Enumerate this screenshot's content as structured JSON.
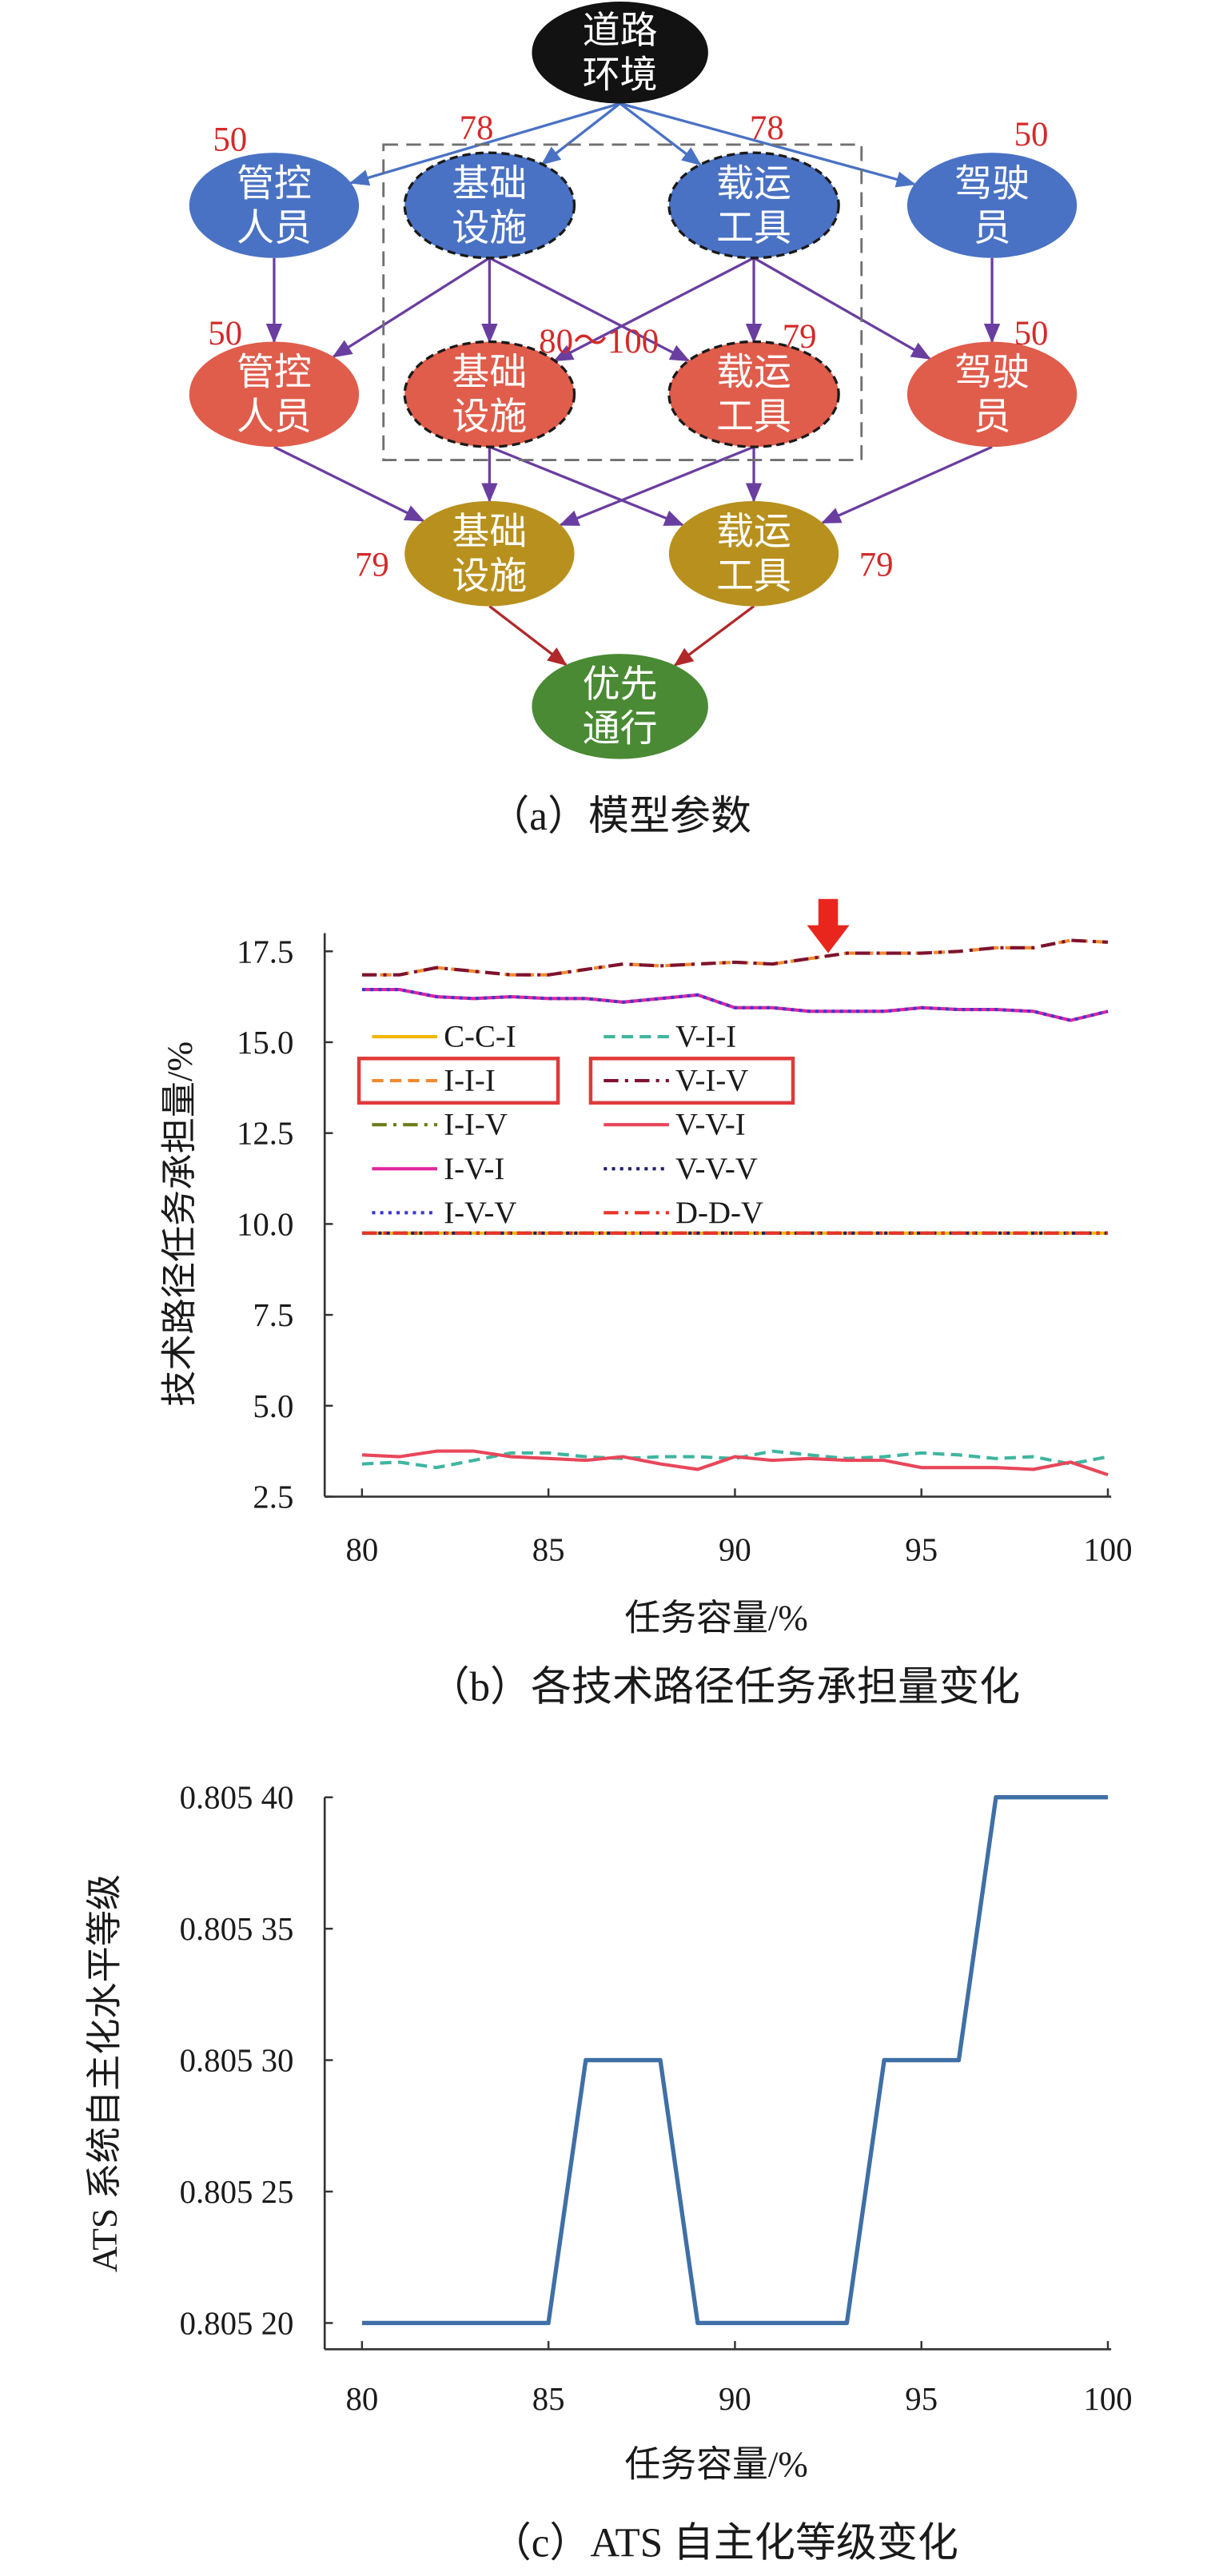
{
  "figure": {
    "panel_a": {
      "caption": "（a）模型参数",
      "nodes": [
        {
          "id": "env",
          "lines": [
            "道路",
            "环境"
          ],
          "fill": "#121212",
          "dashed": false
        },
        {
          "id": "r1_staff",
          "lines": [
            "管控",
            "人员"
          ],
          "fill": "#4a72c4",
          "dashed": false
        },
        {
          "id": "r1_infra",
          "lines": [
            "基础",
            "设施"
          ],
          "fill": "#4a72c4",
          "dashed": true
        },
        {
          "id": "r1_vehicle",
          "lines": [
            "载运",
            "工具"
          ],
          "fill": "#4a72c4",
          "dashed": true
        },
        {
          "id": "r1_driver",
          "lines": [
            "驾驶",
            "员"
          ],
          "fill": "#4a72c4",
          "dashed": false
        },
        {
          "id": "r2_staff",
          "lines": [
            "管控",
            "人员"
          ],
          "fill": "#e05c4b",
          "dashed": false
        },
        {
          "id": "r2_infra",
          "lines": [
            "基础",
            "设施"
          ],
          "fill": "#e05c4b",
          "dashed": true
        },
        {
          "id": "r2_vehicle",
          "lines": [
            "载运",
            "工具"
          ],
          "fill": "#e05c4b",
          "dashed": true
        },
        {
          "id": "r2_driver",
          "lines": [
            "驾驶",
            "员"
          ],
          "fill": "#e05c4b",
          "dashed": false
        },
        {
          "id": "r3_infra",
          "lines": [
            "基础",
            "设施"
          ],
          "fill": "#b8901e",
          "dashed": false
        },
        {
          "id": "r3_vehicle",
          "lines": [
            "载运",
            "工具"
          ],
          "fill": "#b8901e",
          "dashed": false
        },
        {
          "id": "priority",
          "lines": [
            "优先",
            "通行"
          ],
          "fill": "#4a8a34",
          "dashed": false
        }
      ],
      "edges": [
        {
          "from": "env",
          "to": "r1_staff",
          "color": "#4a72c4"
        },
        {
          "from": "env",
          "to": "r1_infra",
          "color": "#4a72c4"
        },
        {
          "from": "env",
          "to": "r1_vehicle",
          "color": "#4a72c4"
        },
        {
          "from": "env",
          "to": "r1_driver",
          "color": "#4a72c4"
        },
        {
          "from": "r1_staff",
          "to": "r2_staff",
          "color": "#6a3ea0"
        },
        {
          "from": "r1_infra",
          "to": "r2_staff",
          "color": "#6a3ea0"
        },
        {
          "from": "r1_infra",
          "to": "r2_infra",
          "color": "#6a3ea0"
        },
        {
          "from": "r1_infra",
          "to": "r2_vehicle",
          "color": "#6a3ea0"
        },
        {
          "from": "r1_vehicle",
          "to": "r2_infra",
          "color": "#6a3ea0"
        },
        {
          "from": "r1_vehicle",
          "to": "r2_vehicle",
          "color": "#6a3ea0"
        },
        {
          "from": "r1_vehicle",
          "to": "r2_driver",
          "color": "#6a3ea0"
        },
        {
          "from": "r1_driver",
          "to": "r2_driver",
          "color": "#6a3ea0"
        },
        {
          "from": "r2_staff",
          "to": "r3_infra",
          "color": "#6a3ea0"
        },
        {
          "from": "r2_infra",
          "to": "r3_infra",
          "color": "#6a3ea0"
        },
        {
          "from": "r2_infra",
          "to": "r3_vehicle",
          "color": "#6a3ea0"
        },
        {
          "from": "r2_vehicle",
          "to": "r3_infra",
          "color": "#6a3ea0"
        },
        {
          "from": "r2_vehicle",
          "to": "r3_vehicle",
          "color": "#6a3ea0"
        },
        {
          "from": "r2_driver",
          "to": "r3_vehicle",
          "color": "#6a3ea0"
        },
        {
          "from": "r3_infra",
          "to": "priority",
          "color": "#b0282a"
        },
        {
          "from": "r3_vehicle",
          "to": "priority",
          "color": "#b0282a"
        }
      ],
      "value_labels": [
        {
          "node": "r1_staff",
          "text": "50"
        },
        {
          "node": "r1_infra",
          "text": "78"
        },
        {
          "node": "r1_vehicle",
          "text": "78"
        },
        {
          "node": "r1_driver",
          "text": "50"
        },
        {
          "node": "r2_staff",
          "text": "50"
        },
        {
          "node": "r2_infra",
          "text": "80～100"
        },
        {
          "node": "r2_vehicle",
          "text": "79"
        },
        {
          "node": "r2_driver",
          "text": "50"
        },
        {
          "node": "r3_infra",
          "text": "79"
        },
        {
          "node": "r3_vehicle",
          "text": "79"
        }
      ],
      "value_color": "#d42a2a",
      "node_border_color": "#1a1a1a",
      "box": {
        "stroke": "#707070",
        "style": "dashed"
      }
    }
  },
  "chart_data": [
    {
      "type": "line",
      "caption": "（b）各技术路径任务承担量变化",
      "xlabel": "任务容量/%",
      "ylabel": "技术路径任务承担量/%",
      "xlim": [
        79,
        100
      ],
      "ylim": [
        2.5,
        18
      ],
      "xticks": [
        "80",
        "85",
        "90",
        "95",
        "100"
      ],
      "yticks": [
        "2.5",
        "5.0",
        "7.5",
        "10.0",
        "12.5",
        "15.0",
        "17.5"
      ],
      "grid": false,
      "x": [
        80,
        81,
        82,
        83,
        84,
        85,
        86,
        87,
        88,
        89,
        90,
        91,
        92,
        93,
        94,
        95,
        96,
        97,
        98,
        99,
        100
      ],
      "series": [
        {
          "name": "C-C-I",
          "color": "#f2b705",
          "style": "solid",
          "values": [
            9.75,
            9.75,
            9.75,
            9.75,
            9.75,
            9.75,
            9.75,
            9.75,
            9.75,
            9.75,
            9.75,
            9.75,
            9.75,
            9.75,
            9.75,
            9.75,
            9.75,
            9.75,
            9.75,
            9.75,
            9.75
          ]
        },
        {
          "name": "I-I-I",
          "color": "#f28a30",
          "style": "dashed",
          "values": [
            16.85,
            16.85,
            17.05,
            16.95,
            16.85,
            16.85,
            17.0,
            17.15,
            17.1,
            17.15,
            17.2,
            17.15,
            17.3,
            17.45,
            17.45,
            17.45,
            17.5,
            17.6,
            17.6,
            17.8,
            17.75
          ]
        },
        {
          "name": "I-I-V",
          "color": "#6b7d1a",
          "style": "dashdot",
          "values": [
            9.75,
            9.75,
            9.75,
            9.75,
            9.75,
            9.75,
            9.75,
            9.75,
            9.75,
            9.75,
            9.75,
            9.75,
            9.75,
            9.75,
            9.75,
            9.75,
            9.75,
            9.75,
            9.75,
            9.75,
            9.75
          ]
        },
        {
          "name": "I-V-I",
          "color": "#e0259c",
          "style": "solid",
          "values": [
            16.45,
            16.45,
            16.25,
            16.2,
            16.25,
            16.2,
            16.2,
            16.1,
            16.2,
            16.3,
            15.95,
            15.95,
            15.85,
            15.85,
            15.85,
            15.95,
            15.9,
            15.9,
            15.85,
            15.6,
            15.85
          ]
        },
        {
          "name": "I-V-V",
          "color": "#3a3ad0",
          "style": "dotted",
          "values": [
            16.45,
            16.45,
            16.25,
            16.2,
            16.25,
            16.2,
            16.2,
            16.1,
            16.2,
            16.3,
            15.95,
            15.95,
            15.85,
            15.85,
            15.85,
            15.95,
            15.9,
            15.9,
            15.85,
            15.6,
            15.85
          ]
        },
        {
          "name": "V-I-I",
          "color": "#3fb5a0",
          "style": "dashed",
          "values": [
            3.4,
            3.45,
            3.3,
            3.5,
            3.7,
            3.7,
            3.6,
            3.55,
            3.6,
            3.6,
            3.55,
            3.75,
            3.65,
            3.55,
            3.6,
            3.7,
            3.65,
            3.55,
            3.6,
            3.4,
            3.6
          ]
        },
        {
          "name": "V-I-V",
          "color": "#7d1230",
          "style": "dashdot",
          "values": [
            16.85,
            16.85,
            17.05,
            16.95,
            16.85,
            16.85,
            17.0,
            17.15,
            17.1,
            17.15,
            17.2,
            17.15,
            17.3,
            17.45,
            17.45,
            17.45,
            17.5,
            17.6,
            17.6,
            17.8,
            17.75
          ]
        },
        {
          "name": "V-V-I",
          "color": "#e8465a",
          "style": "solid",
          "values": [
            3.65,
            3.6,
            3.75,
            3.75,
            3.6,
            3.55,
            3.5,
            3.6,
            3.4,
            3.25,
            3.6,
            3.5,
            3.55,
            3.5,
            3.5,
            3.3,
            3.3,
            3.3,
            3.25,
            3.45,
            3.1
          ]
        },
        {
          "name": "V-V-V",
          "color": "#1f1f6e",
          "style": "dotted",
          "values": [
            9.75,
            9.75,
            9.75,
            9.75,
            9.75,
            9.75,
            9.75,
            9.75,
            9.75,
            9.75,
            9.75,
            9.75,
            9.75,
            9.75,
            9.75,
            9.75,
            9.75,
            9.75,
            9.75,
            9.75,
            9.75
          ]
        },
        {
          "name": "D-D-V",
          "color": "#e8342a",
          "style": "dashdot",
          "values": [
            9.75,
            9.75,
            9.75,
            9.75,
            9.75,
            9.75,
            9.75,
            9.75,
            9.75,
            9.75,
            9.75,
            9.75,
            9.75,
            9.75,
            9.75,
            9.75,
            9.75,
            9.75,
            9.75,
            9.75,
            9.75
          ]
        }
      ],
      "legend": {
        "position": "left",
        "columns": 2,
        "highlighted": [
          "I-I-I",
          "V-I-V"
        ],
        "highlight_color": "#e03a3a"
      },
      "annotation": {
        "type": "arrow",
        "x": 92.5,
        "y": 17.45,
        "color": "#e8261e"
      }
    },
    {
      "type": "line",
      "caption": "（c）ATS 自主化等级变化",
      "xlabel": "任务容量/%",
      "ylabel": "ATS 系统自主化水平等级",
      "xlim": [
        79,
        100
      ],
      "ylim": [
        0.80519,
        0.8054
      ],
      "xticks": [
        "80",
        "85",
        "90",
        "95",
        "100"
      ],
      "yticks": [
        "0.805 20",
        "0.805 25",
        "0.805 30",
        "0.805 35",
        "0.805 40"
      ],
      "grid": false,
      "x": [
        80,
        81,
        82,
        83,
        84,
        85,
        86,
        87,
        88,
        89,
        90,
        91,
        92,
        93,
        94,
        95,
        96,
        97,
        98,
        99,
        100
      ],
      "series": [
        {
          "color": "#3f6fa6",
          "style": "solid",
          "values": [
            0.8052,
            0.8052,
            0.8052,
            0.8052,
            0.8052,
            0.8052,
            0.8053,
            0.8053,
            0.8053,
            0.8052,
            0.8052,
            0.8052,
            0.8052,
            0.8052,
            0.8053,
            0.8053,
            0.8053,
            0.8054,
            0.8054,
            0.8054,
            0.8054
          ]
        }
      ]
    }
  ]
}
